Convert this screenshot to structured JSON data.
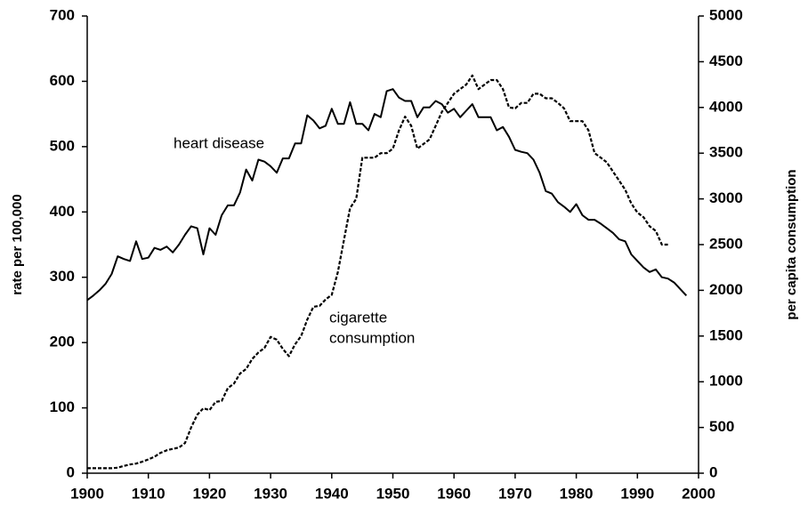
{
  "chart_data": {
    "type": "line",
    "y_label": "rate per 100,000",
    "y2_label": "per capita consumption",
    "annotations": [
      "heart disease",
      "cigarette",
      "consumption"
    ],
    "x": [
      1900,
      1901,
      1902,
      1903,
      1904,
      1905,
      1906,
      1907,
      1908,
      1909,
      1910,
      1911,
      1912,
      1913,
      1914,
      1915,
      1916,
      1917,
      1918,
      1919,
      1920,
      1921,
      1922,
      1923,
      1924,
      1925,
      1926,
      1927,
      1928,
      1929,
      1930,
      1931,
      1932,
      1933,
      1934,
      1935,
      1936,
      1937,
      1938,
      1939,
      1940,
      1941,
      1942,
      1943,
      1944,
      1945,
      1946,
      1947,
      1948,
      1949,
      1950,
      1951,
      1952,
      1953,
      1954,
      1955,
      1956,
      1957,
      1958,
      1959,
      1960,
      1961,
      1962,
      1963,
      1964,
      1965,
      1966,
      1967,
      1968,
      1969,
      1970,
      1971,
      1972,
      1973,
      1974,
      1975,
      1976,
      1977,
      1978,
      1979,
      1980,
      1981,
      1982,
      1983,
      1984,
      1985,
      1986,
      1987,
      1988,
      1989,
      1990,
      1991,
      1992,
      1993,
      1994,
      1995,
      1996,
      1997,
      1998
    ],
    "series": [
      {
        "name": "heart disease",
        "color": "#000000",
        "dash": false,
        "values": [
          265,
          272,
          280,
          290,
          305,
          332,
          328,
          325,
          355,
          328,
          330,
          345,
          342,
          347,
          338,
          350,
          365,
          378,
          375,
          335,
          375,
          365,
          395,
          410,
          410,
          430,
          465,
          448,
          480,
          477,
          470,
          460,
          482,
          482,
          505,
          505,
          548,
          540,
          528,
          532,
          558,
          535,
          535,
          568,
          535,
          535,
          525,
          550,
          545,
          585,
          588,
          575,
          570,
          570,
          545,
          560,
          560,
          570,
          565,
          552,
          558,
          545,
          555,
          565,
          545,
          545,
          545,
          525,
          530,
          515,
          495,
          492,
          490,
          480,
          460,
          432,
          428,
          415,
          408,
          400,
          412,
          395,
          388,
          388,
          382,
          375,
          368,
          358,
          355,
          335,
          325,
          315,
          308,
          312,
          300,
          298,
          292,
          282,
          272
        ]
      },
      {
        "name": "cigarette consumption",
        "color": "#000000",
        "dash": true,
        "axis": "y2",
        "values": [
          54,
          54,
          54,
          54,
          54,
          60,
          80,
          95,
          105,
          125,
          151,
          180,
          223,
          250,
          267,
          280,
          330,
          500,
          640,
          710,
          690,
          780,
          790,
          930,
          980,
          1090,
          1140,
          1250,
          1320,
          1370,
          1490,
          1460,
          1360,
          1280,
          1410,
          1500,
          1680,
          1820,
          1830,
          1900,
          1950,
          2200,
          2550,
          2900,
          3000,
          3450,
          3450,
          3450,
          3500,
          3500,
          3550,
          3750,
          3900,
          3800,
          3550,
          3600,
          3650,
          3800,
          3950,
          4050,
          4150,
          4200,
          4250,
          4350,
          4200,
          4250,
          4300,
          4300,
          4200,
          4000,
          3990,
          4050,
          4050,
          4150,
          4150,
          4100,
          4100,
          4050,
          3990,
          3850,
          3850,
          3850,
          3750,
          3500,
          3450,
          3400,
          3300,
          3200,
          3100,
          2950,
          2850,
          2800,
          2700,
          2650,
          2500,
          2500,
          null,
          null,
          null
        ]
      }
    ],
    "xlim": [
      1900,
      2000
    ],
    "xticks": [
      1900,
      1910,
      1920,
      1930,
      1940,
      1950,
      1960,
      1970,
      1980,
      1990,
      2000
    ],
    "ylim": [
      0,
      700
    ],
    "yticks": [
      0,
      100,
      200,
      300,
      400,
      500,
      600,
      700
    ],
    "y2lim": [
      0,
      5000
    ],
    "y2ticks": [
      0,
      500,
      1000,
      1500,
      2000,
      2500,
      3000,
      3500,
      4000,
      4500,
      5000
    ],
    "grid": false
  }
}
